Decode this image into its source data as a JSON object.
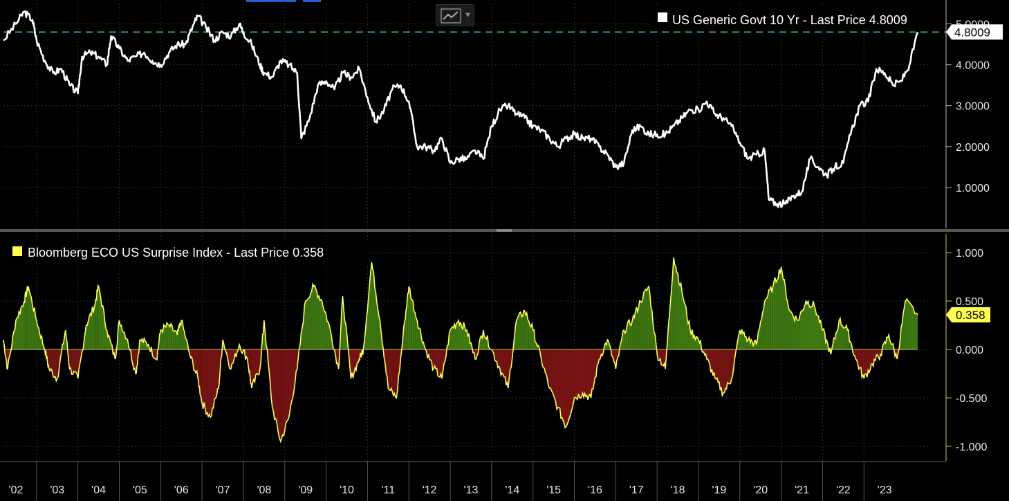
{
  "chart_data": [
    {
      "type": "line",
      "title": "US Generic Govt 10 Yr - Last Price 4.8009",
      "legend_label": "US Generic Govt 10 Yr - Last Price 4.8009",
      "series_name": "US Generic Govt 10 Yr",
      "last_price": 4.8009,
      "last_price_label": "4.8009",
      "x": [
        2001.7,
        2002.0,
        2002.2,
        2002.4,
        2002.5,
        2002.7,
        2002.9,
        2003.1,
        2003.3,
        2003.5,
        2003.6,
        2003.8,
        2004.0,
        2004.2,
        2004.3,
        2004.5,
        2004.7,
        2004.9,
        2005.1,
        2005.3,
        2005.5,
        2005.7,
        2005.9,
        2006.1,
        2006.3,
        2006.4,
        2006.6,
        2006.8,
        2007.0,
        2007.2,
        2007.4,
        2007.5,
        2007.7,
        2007.9,
        2008.0,
        2008.2,
        2008.4,
        2008.6,
        2008.8,
        2008.9,
        2009.1,
        2009.3,
        2009.5,
        2009.7,
        2009.9,
        2010.1,
        2010.3,
        2010.5,
        2010.7,
        2010.9,
        2011.1,
        2011.3,
        2011.5,
        2011.7,
        2011.9,
        2012.1,
        2012.3,
        2012.5,
        2012.7,
        2012.9,
        2013.1,
        2013.3,
        2013.5,
        2013.7,
        2013.9,
        2014.1,
        2014.3,
        2014.5,
        2014.7,
        2014.9,
        2015.1,
        2015.3,
        2015.5,
        2015.7,
        2015.9,
        2016.1,
        2016.3,
        2016.5,
        2016.7,
        2016.9,
        2017.1,
        2017.3,
        2017.5,
        2017.7,
        2017.9,
        2018.1,
        2018.3,
        2018.5,
        2018.7,
        2018.9,
        2019.1,
        2019.3,
        2019.5,
        2019.7,
        2019.9,
        2020.1,
        2020.2,
        2020.4,
        2020.6,
        2020.8,
        2021.0,
        2021.2,
        2021.4,
        2021.6,
        2021.8,
        2022.0,
        2022.2,
        2022.4,
        2022.6,
        2022.8,
        2023.0,
        2023.2,
        2023.4,
        2023.6,
        2023.8
      ],
      "y": [
        4.6,
        5.0,
        5.3,
        5.1,
        4.6,
        4.1,
        3.8,
        3.9,
        3.5,
        3.3,
        4.2,
        4.3,
        4.2,
        4.0,
        4.7,
        4.4,
        4.1,
        4.2,
        4.3,
        4.1,
        4.0,
        4.3,
        4.5,
        4.5,
        5.0,
        5.2,
        4.9,
        4.6,
        4.8,
        4.7,
        5.0,
        4.8,
        4.5,
        4.0,
        3.8,
        3.7,
        4.1,
        4.0,
        3.8,
        2.2,
        2.7,
        3.5,
        3.6,
        3.4,
        3.8,
        3.7,
        3.9,
        3.2,
        2.6,
        2.9,
        3.4,
        3.5,
        3.1,
        2.0,
        2.0,
        1.9,
        2.2,
        1.6,
        1.7,
        1.7,
        1.9,
        1.7,
        2.5,
        2.9,
        3.0,
        2.8,
        2.7,
        2.5,
        2.4,
        2.2,
        2.0,
        2.2,
        2.3,
        2.2,
        2.2,
        2.0,
        1.8,
        1.5,
        1.6,
        2.4,
        2.5,
        2.3,
        2.3,
        2.3,
        2.5,
        2.7,
        2.9,
        2.9,
        3.1,
        2.8,
        2.7,
        2.5,
        2.1,
        1.7,
        1.8,
        1.9,
        0.7,
        0.6,
        0.6,
        0.8,
        0.9,
        1.7,
        1.5,
        1.3,
        1.5,
        1.6,
        2.4,
        3.0,
        3.1,
        3.9,
        3.8,
        3.5,
        3.6,
        4.0,
        4.8
      ],
      "y_ticks": [
        "1.0000",
        "2.0000",
        "3.0000",
        "4.0000",
        "5.0000"
      ],
      "ylim": [
        0.0,
        5.5
      ],
      "reference_line": 4.8009,
      "colors": {
        "line": "#ffffff",
        "reference_line": "#36b3c9",
        "legend_box": "#ffffff"
      }
    },
    {
      "type": "area",
      "title": "Bloomberg ECO US Surprise Index - Last Price 0.358",
      "legend_label": "Bloomberg ECO US Surprise Index - Last Price 0.358",
      "series_name": "Bloomberg ECO US Surprise Index",
      "last_price": 0.358,
      "last_price_label": "0.358",
      "x": [
        2001.7,
        2001.8,
        2002.0,
        2002.2,
        2002.3,
        2002.5,
        2002.7,
        2002.8,
        2003.0,
        2003.2,
        2003.3,
        2003.5,
        2003.7,
        2003.9,
        2004.0,
        2004.2,
        2004.4,
        2004.5,
        2004.7,
        2004.9,
        2005.0,
        2005.2,
        2005.4,
        2005.5,
        2005.7,
        2005.9,
        2006.0,
        2006.2,
        2006.4,
        2006.5,
        2006.7,
        2006.9,
        2007.0,
        2007.2,
        2007.4,
        2007.6,
        2007.7,
        2007.9,
        2008.0,
        2008.2,
        2008.4,
        2008.6,
        2008.8,
        2009.0,
        2009.2,
        2009.4,
        2009.6,
        2009.8,
        2009.9,
        2010.1,
        2010.3,
        2010.4,
        2010.6,
        2010.8,
        2011.0,
        2011.2,
        2011.4,
        2011.5,
        2011.7,
        2011.9,
        2012.1,
        2012.3,
        2012.5,
        2012.7,
        2012.9,
        2013.1,
        2013.3,
        2013.5,
        2013.7,
        2013.9,
        2014.1,
        2014.3,
        2014.5,
        2014.7,
        2014.9,
        2015.1,
        2015.3,
        2015.5,
        2015.7,
        2015.9,
        2016.1,
        2016.3,
        2016.5,
        2016.7,
        2016.9,
        2017.1,
        2017.3,
        2017.5,
        2017.7,
        2017.9,
        2018.1,
        2018.3,
        2018.5,
        2018.7,
        2018.9,
        2019.1,
        2019.3,
        2019.5,
        2019.7,
        2019.9,
        2020.1,
        2020.3,
        2020.5,
        2020.7,
        2020.9,
        2021.1,
        2021.3,
        2021.5,
        2021.7,
        2021.9,
        2022.1,
        2022.3,
        2022.5,
        2022.7,
        2022.9,
        2023.1,
        2023.3,
        2023.5,
        2023.8
      ],
      "y": [
        0.1,
        -0.2,
        0.3,
        0.5,
        0.65,
        0.3,
        0.0,
        -0.2,
        -0.3,
        0.2,
        -0.2,
        -0.3,
        0.25,
        0.45,
        0.65,
        0.2,
        -0.1,
        0.3,
        0.1,
        -0.25,
        0.1,
        0.05,
        -0.1,
        0.2,
        0.25,
        0.15,
        0.3,
        -0.05,
        -0.3,
        -0.55,
        -0.7,
        -0.4,
        0.1,
        -0.2,
        0.05,
        -0.1,
        -0.4,
        -0.2,
        0.3,
        -0.6,
        -0.95,
        -0.7,
        -0.2,
        0.5,
        0.65,
        0.5,
        0.2,
        -0.2,
        0.55,
        -0.3,
        -0.1,
        0.0,
        0.9,
        0.3,
        -0.4,
        -0.5,
        0.3,
        0.65,
        0.3,
        0.0,
        -0.2,
        -0.3,
        0.2,
        0.3,
        0.2,
        -0.1,
        0.2,
        0.0,
        -0.2,
        -0.4,
        0.3,
        0.4,
        0.2,
        -0.1,
        -0.4,
        -0.6,
        -0.8,
        -0.5,
        -0.45,
        -0.5,
        -0.1,
        0.1,
        -0.2,
        0.2,
        0.3,
        0.5,
        0.65,
        -0.05,
        -0.2,
        0.95,
        0.6,
        0.2,
        0.1,
        -0.1,
        -0.3,
        -0.45,
        -0.3,
        0.2,
        0.1,
        0.05,
        0.5,
        0.65,
        0.85,
        0.4,
        0.3,
        0.5,
        0.45,
        0.2,
        -0.05,
        0.3,
        0.2,
        -0.1,
        -0.3,
        -0.15,
        -0.05,
        0.15,
        -0.1,
        0.5,
        0.358
      ],
      "y_ticks": [
        "-1.000",
        "-0.500",
        "0.000",
        "0.500",
        "1.000"
      ],
      "ylim": [
        -1.15,
        1.2
      ],
      "colors": {
        "line": "#ffff4d",
        "positive_fill": "#3f7a12",
        "negative_fill": "#7a1414",
        "legend_box": "#ffff4d",
        "last_tag": "#ffff4d"
      }
    }
  ],
  "x_axis": {
    "tick_labels": [
      "'02",
      "'03",
      "'04",
      "'05",
      "'06",
      "'07",
      "'08",
      "'09",
      "'10",
      "'11",
      "'12",
      "'13",
      "'14",
      "'15",
      "'16",
      "'17",
      "'18",
      "'19",
      "'20",
      "'21",
      "'22",
      "'23"
    ],
    "range": [
      2001.7,
      2024.1
    ]
  },
  "grid": "dashed",
  "icons": {
    "chart_type_button": "line-chart-icon"
  }
}
